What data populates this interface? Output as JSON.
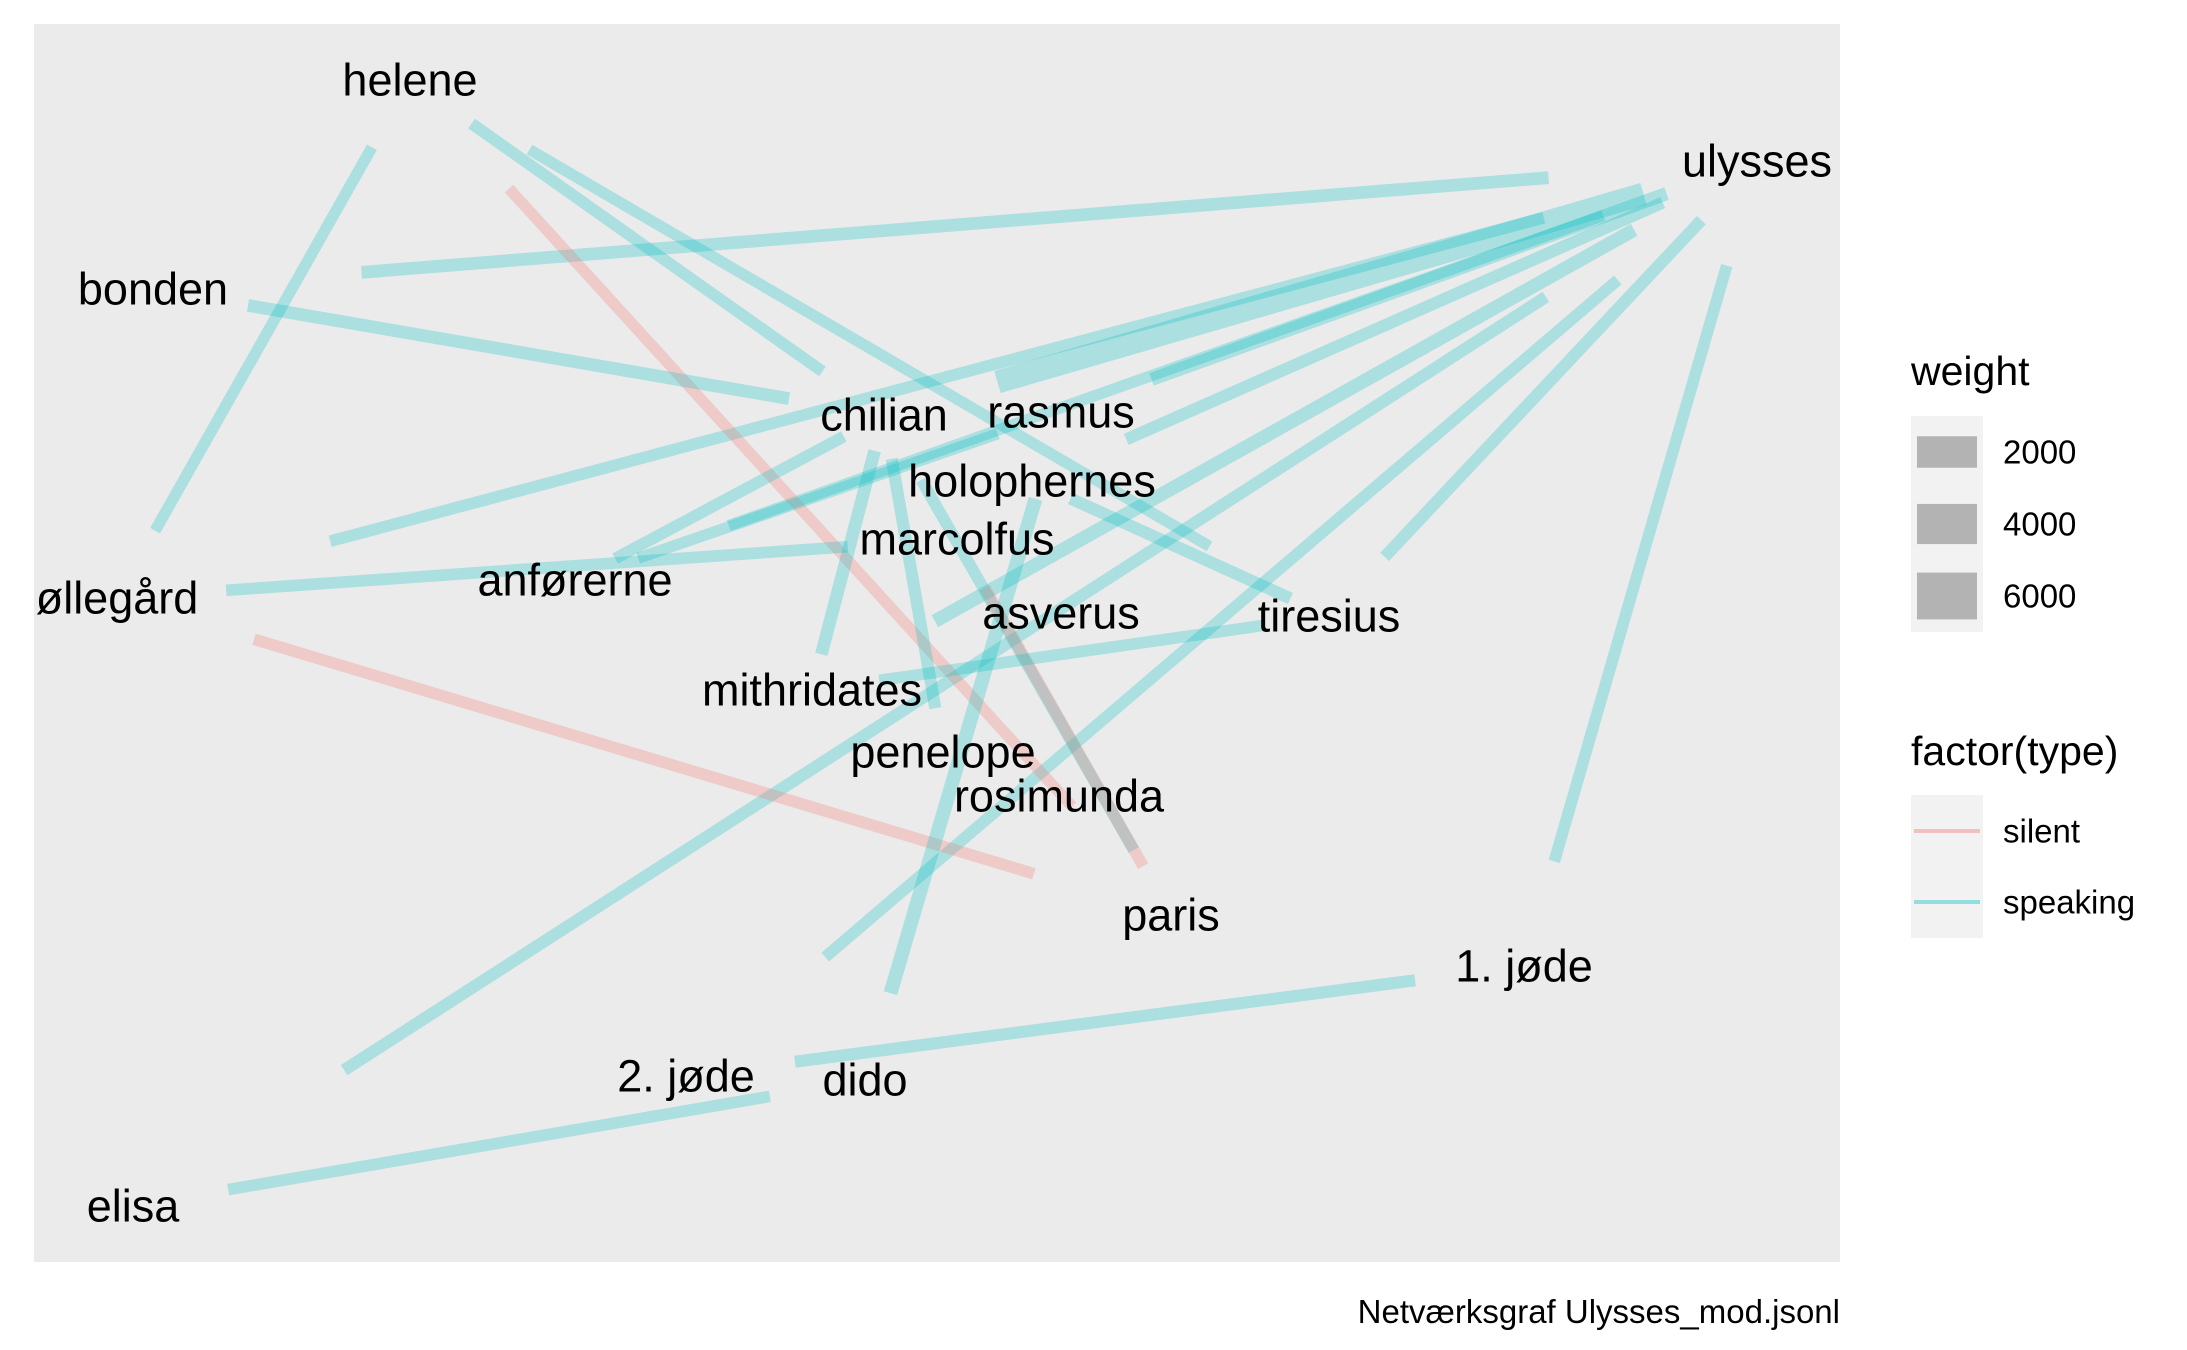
{
  "chart_data": {
    "type": "network",
    "caption": "Netværksgraf Ulysses_mod.jsonl",
    "nodes": [
      {
        "id": "helene",
        "label": "helene"
      },
      {
        "id": "ulysses",
        "label": "ulysses"
      },
      {
        "id": "bonden",
        "label": "bonden"
      },
      {
        "id": "chilian",
        "label": "chilian"
      },
      {
        "id": "rasmus",
        "label": "rasmus"
      },
      {
        "id": "holophernes",
        "label": "holophernes"
      },
      {
        "id": "marcolfus",
        "label": "marcolfus"
      },
      {
        "id": "anforerne",
        "label": "anførerne"
      },
      {
        "id": "ollegard",
        "label": "øllegård"
      },
      {
        "id": "asverus",
        "label": "asverus"
      },
      {
        "id": "tiresius",
        "label": "tiresius"
      },
      {
        "id": "mithridates",
        "label": "mithridates"
      },
      {
        "id": "penelope",
        "label": "penelope"
      },
      {
        "id": "rosimunda",
        "label": "rosimunda"
      },
      {
        "id": "paris",
        "label": "paris"
      },
      {
        "id": "jode1",
        "label": "1. jøde"
      },
      {
        "id": "jode2",
        "label": "2. jøde"
      },
      {
        "id": "dido",
        "label": "dido"
      },
      {
        "id": "elisa",
        "label": "elisa"
      }
    ],
    "edges": [
      {
        "source": "ulysses",
        "target": "chilian",
        "weight": 6500,
        "type": "speaking"
      },
      {
        "source": "ulysses",
        "target": "bonden",
        "weight": 1200,
        "type": "speaking"
      },
      {
        "source": "ulysses",
        "target": "ollegard",
        "weight": 900,
        "type": "speaking"
      },
      {
        "source": "ulysses",
        "target": "rasmus",
        "weight": 1400,
        "type": "speaking"
      },
      {
        "source": "ulysses",
        "target": "holophernes",
        "weight": 1000,
        "type": "speaking"
      },
      {
        "source": "ulysses",
        "target": "mithridates",
        "weight": 1500,
        "type": "speaking"
      },
      {
        "source": "ulysses",
        "target": "tiresius",
        "weight": 1000,
        "type": "speaking"
      },
      {
        "source": "ulysses",
        "target": "elisa",
        "weight": 1000,
        "type": "speaking"
      },
      {
        "source": "ulysses",
        "target": "jode2",
        "weight": 900,
        "type": "speaking"
      },
      {
        "source": "ulysses",
        "target": "jode1",
        "weight": 900,
        "type": "speaking"
      },
      {
        "source": "ulysses",
        "target": "anforerne",
        "weight": 800,
        "type": "speaking"
      },
      {
        "source": "helene",
        "target": "ollegard",
        "weight": 800,
        "type": "speaking"
      },
      {
        "source": "helene",
        "target": "chilian",
        "weight": 900,
        "type": "speaking"
      },
      {
        "source": "helene",
        "target": "tiresius",
        "weight": 800,
        "type": "speaking"
      },
      {
        "source": "helene",
        "target": "paris",
        "weight": 800,
        "type": "silent"
      },
      {
        "source": "bonden",
        "target": "chilian",
        "weight": 1200,
        "type": "speaking"
      },
      {
        "source": "ollegard",
        "target": "marcolfus",
        "weight": 900,
        "type": "speaking"
      },
      {
        "source": "ollegard",
        "target": "paris",
        "weight": 900,
        "type": "silent"
      },
      {
        "source": "chilian",
        "target": "anforerne",
        "weight": 900,
        "type": "speaking"
      },
      {
        "source": "chilian",
        "target": "mithridates",
        "weight": 1200,
        "type": "speaking"
      },
      {
        "source": "chilian",
        "target": "penelope",
        "weight": 1000,
        "type": "speaking"
      },
      {
        "source": "chilian",
        "target": "paris",
        "weight": 900,
        "type": "speaking"
      },
      {
        "source": "rasmus",
        "target": "dido",
        "weight": 1600,
        "type": "speaking"
      },
      {
        "source": "rasmus",
        "target": "anforerne",
        "weight": 800,
        "type": "speaking"
      },
      {
        "source": "holophernes",
        "target": "tiresius",
        "weight": 1000,
        "type": "speaking"
      },
      {
        "source": "marcolfus",
        "target": "paris",
        "weight": 900,
        "type": "silent"
      },
      {
        "source": "mithridates",
        "target": "tiresius",
        "weight": 900,
        "type": "speaking"
      },
      {
        "source": "jode2",
        "target": "jode1",
        "weight": 1000,
        "type": "speaking"
      },
      {
        "source": "elisa",
        "target": "dido",
        "weight": 900,
        "type": "speaking"
      }
    ],
    "legend": {
      "weight_title": "weight",
      "weight_items": [
        {
          "label": "2000",
          "value": 2000
        },
        {
          "label": "4000",
          "value": 4000
        },
        {
          "label": "6000",
          "value": 6000
        }
      ],
      "type_title": "factor(type)",
      "type_items": [
        {
          "label": "silent",
          "key": "silent"
        },
        {
          "label": "speaking",
          "key": "speaking"
        }
      ],
      "position": "right"
    },
    "colors": {
      "panel": "#ebebeb",
      "speaking": "#00BFC4",
      "silent": "#F8766D",
      "legend_key_bg": "#f2f2f2",
      "legend_swatch": "#b3b3b3"
    },
    "edge_alpha": 0.27
  }
}
